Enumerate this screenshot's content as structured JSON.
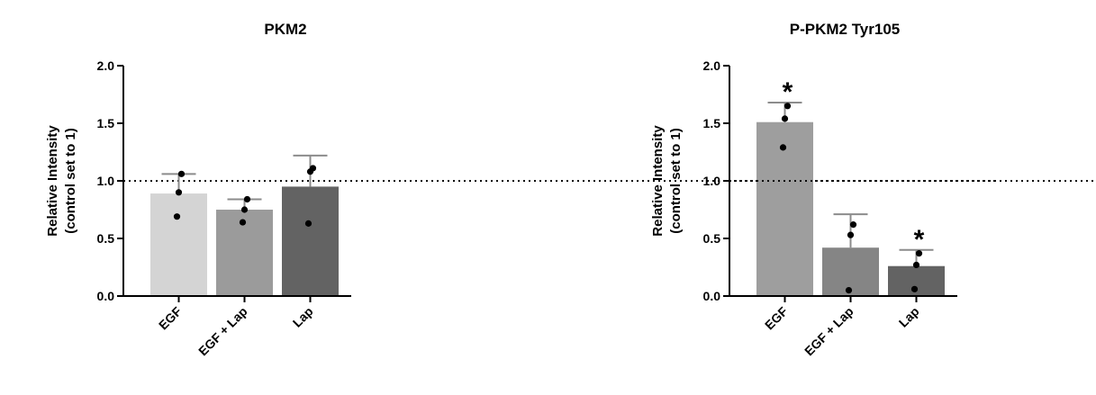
{
  "figure": {
    "panels": [
      {
        "title": "PKM2",
        "ylabel_line1": "Relative Intensity",
        "ylabel_line2": "(control set to 1)"
      },
      {
        "title": "P-PKM2 Tyr105",
        "ylabel_line1": "Relative Intensity",
        "ylabel_line2": "(control set to 1)"
      }
    ]
  },
  "chart_data": [
    {
      "type": "bar",
      "title": "PKM2",
      "ylabel": "Relative Intensity (control set to 1)",
      "ylim": [
        0,
        2.0
      ],
      "yticks": [
        "0.0",
        "0.5",
        "1.0",
        "1.5",
        "2.0"
      ],
      "reference_line": 1.0,
      "categories": [
        "EGF",
        "EGF + Lap",
        "Lap"
      ],
      "values": [
        0.89,
        0.75,
        0.95
      ],
      "error_upper": [
        1.06,
        0.84,
        1.22
      ],
      "points": [
        [
          1.06,
          0.9,
          0.69
        ],
        [
          0.84,
          0.75,
          0.64
        ],
        [
          1.11,
          1.08,
          0.63
        ]
      ],
      "significance": [
        "",
        "",
        ""
      ],
      "colors": [
        "#d4d4d4",
        "#9b9b9b",
        "#636363"
      ],
      "grid": false
    },
    {
      "type": "bar",
      "title": "P-PKM2 Tyr105",
      "ylabel": "Relative Intensity (control set to 1)",
      "ylim": [
        0,
        2.0
      ],
      "yticks": [
        "0.0",
        "0.5",
        "1.0",
        "1.5",
        "2.0"
      ],
      "reference_line": 1.0,
      "categories": [
        "EGF",
        "EGF + Lap",
        "Lap"
      ],
      "values": [
        1.51,
        0.42,
        0.26
      ],
      "error_upper": [
        1.68,
        0.71,
        0.4
      ],
      "points": [
        [
          1.65,
          1.54,
          1.29
        ],
        [
          0.62,
          0.53,
          0.05
        ],
        [
          0.37,
          0.27,
          0.06
        ]
      ],
      "significance": [
        "*",
        "",
        "*"
      ],
      "colors": [
        "#9e9e9e",
        "#858585",
        "#636363"
      ],
      "grid": false
    }
  ]
}
